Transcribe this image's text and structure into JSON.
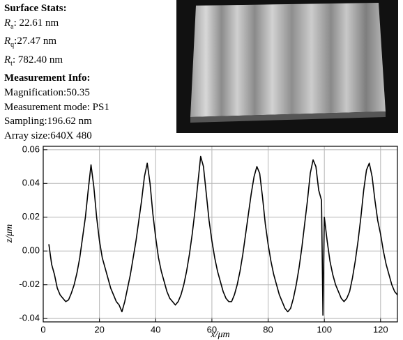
{
  "info": {
    "stats_title": "Surface Stats:",
    "stats": [
      {
        "symbol": "R",
        "sub": "a",
        "text": ": 22.61 nm"
      },
      {
        "symbol": "R",
        "sub": "q",
        "text": ":27.47 nm"
      },
      {
        "symbol": "R",
        "sub": "t",
        "text": ": 782.40 nm"
      }
    ],
    "measurement_title": "Measurement Info:",
    "measurement": [
      "Magnification:50.35",
      "Measurement mode: PS1",
      "Sampling:196.62 nm",
      "Array size:640X 480"
    ]
  },
  "chart_data": {
    "type": "line",
    "xlabel": "x/μm",
    "ylabel": "z/μm",
    "color": "#000000",
    "grid": true,
    "xlim": [
      0,
      126
    ],
    "ylim": [
      -0.042,
      0.062
    ],
    "xticks": [
      0,
      20,
      40,
      60,
      80,
      100,
      120
    ],
    "yticks": [
      -0.04,
      -0.02,
      {
        "value": 0,
        "label": "0.00"
      },
      0.02,
      0.04,
      0.06
    ],
    "x": [
      2,
      3,
      4,
      5,
      6,
      7,
      8,
      9,
      10,
      11,
      12,
      13,
      14,
      15,
      16,
      17,
      18,
      19,
      20,
      21,
      22,
      23,
      24,
      25,
      26,
      27,
      28,
      29,
      30,
      31,
      32,
      33,
      34,
      35,
      36,
      37,
      38,
      39,
      40,
      41,
      42,
      43,
      44,
      45,
      46,
      47,
      48,
      49,
      50,
      51,
      52,
      53,
      54,
      55,
      56,
      57,
      58,
      59,
      60,
      61,
      62,
      63,
      64,
      65,
      66,
      67,
      68,
      69,
      70,
      71,
      72,
      73,
      74,
      75,
      76,
      77,
      78,
      79,
      80,
      81,
      82,
      83,
      84,
      85,
      86,
      87,
      88,
      89,
      90,
      91,
      92,
      93,
      94,
      95,
      96,
      97,
      98,
      99,
      99.5,
      100,
      101,
      102,
      103,
      104,
      105,
      106,
      107,
      108,
      109,
      110,
      111,
      112,
      113,
      114,
      115,
      116,
      117,
      118,
      119,
      120,
      121,
      122,
      123,
      124,
      125,
      126
    ],
    "values": [
      0.004,
      -0.008,
      -0.014,
      -0.022,
      -0.026,
      -0.028,
      -0.03,
      -0.029,
      -0.025,
      -0.02,
      -0.013,
      -0.004,
      0.008,
      0.02,
      0.036,
      0.051,
      0.038,
      0.02,
      0.006,
      -0.004,
      -0.01,
      -0.016,
      -0.022,
      -0.026,
      -0.03,
      -0.032,
      -0.036,
      -0.03,
      -0.022,
      -0.014,
      -0.004,
      0.006,
      0.018,
      0.03,
      0.044,
      0.052,
      0.04,
      0.022,
      0.008,
      -0.004,
      -0.012,
      -0.018,
      -0.024,
      -0.028,
      -0.03,
      -0.032,
      -0.03,
      -0.026,
      -0.02,
      -0.012,
      -0.002,
      0.01,
      0.024,
      0.04,
      0.056,
      0.05,
      0.034,
      0.018,
      0.006,
      -0.004,
      -0.012,
      -0.018,
      -0.024,
      -0.028,
      -0.03,
      -0.03,
      -0.026,
      -0.02,
      -0.012,
      -0.002,
      0.01,
      0.022,
      0.034,
      0.044,
      0.05,
      0.046,
      0.032,
      0.016,
      0.004,
      -0.006,
      -0.014,
      -0.02,
      -0.026,
      -0.03,
      -0.034,
      -0.036,
      -0.034,
      -0.028,
      -0.02,
      -0.01,
      0.002,
      0.016,
      0.03,
      0.046,
      0.054,
      0.05,
      0.036,
      0.03,
      -0.038,
      0.02,
      0.006,
      -0.006,
      -0.014,
      -0.02,
      -0.024,
      -0.028,
      -0.03,
      -0.028,
      -0.024,
      -0.016,
      -0.006,
      0.006,
      0.02,
      0.036,
      0.048,
      0.052,
      0.044,
      0.03,
      0.018,
      0.01,
      0.0,
      -0.008,
      -0.014,
      -0.02,
      -0.024,
      -0.026
    ]
  }
}
